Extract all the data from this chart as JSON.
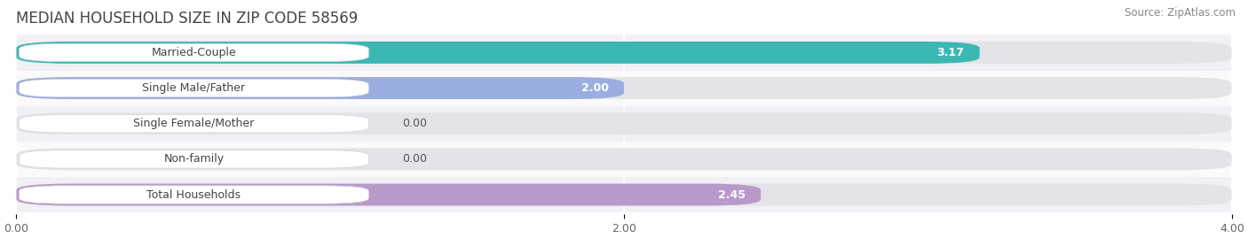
{
  "title": "MEDIAN HOUSEHOLD SIZE IN ZIP CODE 58569",
  "source": "Source: ZipAtlas.com",
  "categories": [
    "Married-Couple",
    "Single Male/Father",
    "Single Female/Mother",
    "Non-family",
    "Total Households"
  ],
  "values": [
    3.17,
    2.0,
    0.0,
    0.0,
    2.45
  ],
  "bar_colors": [
    "#3cb8b4",
    "#9baee0",
    "#f48aa0",
    "#f5c990",
    "#b89aca"
  ],
  "xlim_max": 4.0,
  "xticks": [
    0.0,
    2.0,
    4.0
  ],
  "xtick_labels": [
    "0.00",
    "2.00",
    "4.00"
  ],
  "background_color": "#f5f5f5",
  "bar_bg_color": "#e4e4e8",
  "row_bg_even": "#f0f0f4",
  "row_bg_odd": "#fafafa",
  "title_fontsize": 12,
  "source_fontsize": 8.5,
  "label_fontsize": 9,
  "value_fontsize": 9,
  "tick_fontsize": 9,
  "bar_height": 0.62,
  "figsize": [
    14.06,
    2.69
  ],
  "dpi": 100
}
